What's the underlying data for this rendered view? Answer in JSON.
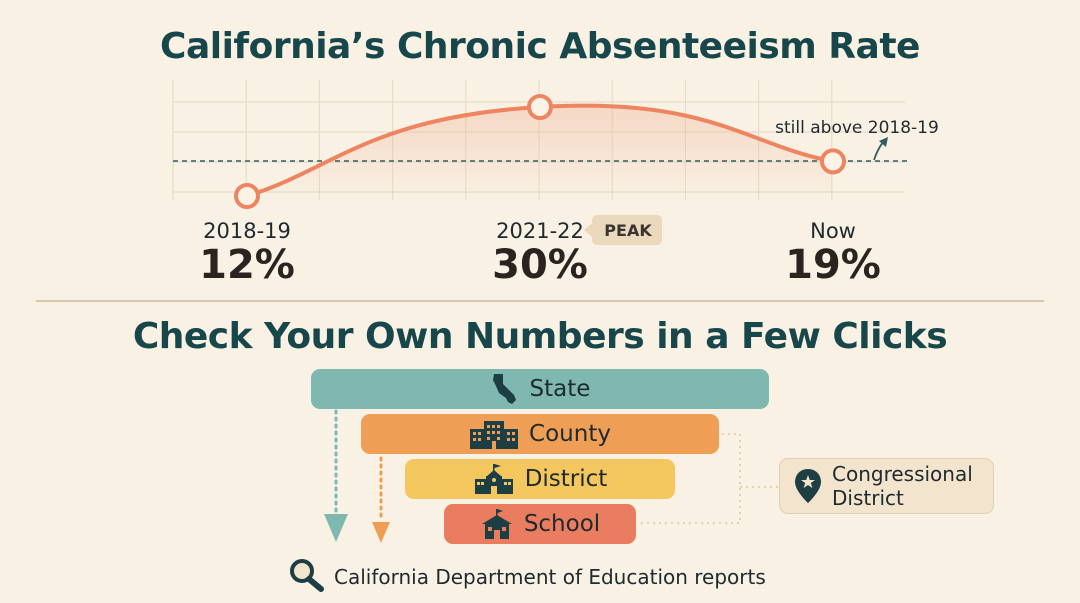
{
  "chart_data": {
    "type": "line",
    "title": "California’s Chronic Absenteeism Rate",
    "categories": [
      "2018-19",
      "2021-22",
      "Now"
    ],
    "series": [
      {
        "values": [
          12,
          30,
          19
        ]
      }
    ],
    "value_labels": [
      "12%",
      "30%",
      "19%"
    ],
    "annotations": [
      {
        "text": "PEAK",
        "category": "2021-22"
      },
      {
        "text": "still above 2018-19",
        "note": "dashed reference line at 2018-19 level"
      }
    ],
    "ylim": [
      0,
      36
    ],
    "grid": true,
    "colors": {
      "line": "#ee8561",
      "reference": "#2f5f62"
    }
  },
  "section": {
    "title": "Check Your Own Numbers in a Few Clicks",
    "levels": [
      {
        "label": "State",
        "icon": "california-map-icon",
        "color": "#7fb8b0"
      },
      {
        "label": "County",
        "icon": "building-icon",
        "color": "#ef9e55"
      },
      {
        "label": "District",
        "icon": "school-building-icon",
        "color": "#f4c65e"
      },
      {
        "label": "School",
        "icon": "schoolhouse-icon",
        "color": "#ea7c5f"
      }
    ],
    "side_level": {
      "label": "Congressional District",
      "icon": "location-pin-star-icon"
    },
    "source": {
      "label": "California Department of Education reports",
      "icon": "magnifier-icon"
    }
  },
  "colors": {
    "title": "#17474a",
    "background": "#f8f1e4"
  }
}
